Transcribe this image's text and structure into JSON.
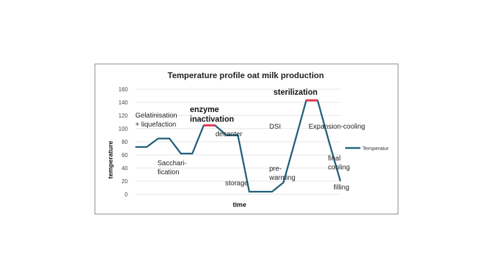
{
  "chart_data": {
    "type": "line",
    "title": "Temperature profile oat milk production",
    "xlabel": "time",
    "ylabel": "temperature",
    "ylim": [
      0,
      160
    ],
    "yticks": [
      0,
      20,
      40,
      60,
      80,
      100,
      120,
      140,
      160
    ],
    "grid": true,
    "legend_position": "right",
    "series": [
      {
        "name": "Temperatur",
        "color": "#21607a",
        "x": [
          0,
          1,
          2,
          3,
          4,
          5,
          6,
          7,
          8,
          9,
          10,
          11,
          12,
          13,
          14,
          15,
          16,
          17,
          18
        ],
        "values": [
          72,
          72,
          85,
          85,
          62,
          62,
          105,
          105,
          90,
          90,
          4,
          4,
          4,
          18,
          80,
          143,
          143,
          80,
          20
        ]
      }
    ],
    "highlights": [
      {
        "x_from": 6,
        "x_to": 7,
        "value": 105,
        "color": "#e0304a"
      },
      {
        "x_from": 15,
        "x_to": 16,
        "value": 143,
        "color": "#e0304a"
      }
    ],
    "annotations": [
      {
        "lines": [
          "Gelatinisation",
          "+ liquefaction"
        ],
        "bold": false
      },
      {
        "lines": [
          "Sacchari-",
          "fication"
        ],
        "bold": false
      },
      {
        "lines": [
          "enzyme",
          "inactivation"
        ],
        "bold": true
      },
      {
        "lines": [
          "decanter"
        ],
        "bold": false
      },
      {
        "lines": [
          "storage"
        ],
        "bold": false
      },
      {
        "lines": [
          "pre-",
          "warming"
        ],
        "bold": false
      },
      {
        "lines": [
          "DSI"
        ],
        "bold": false
      },
      {
        "lines": [
          "sterilization"
        ],
        "bold": true
      },
      {
        "lines": [
          "Expansion-cooling"
        ],
        "bold": false
      },
      {
        "lines": [
          "final",
          "cooling"
        ],
        "bold": false
      },
      {
        "lines": [
          "filling"
        ],
        "bold": false
      }
    ]
  }
}
